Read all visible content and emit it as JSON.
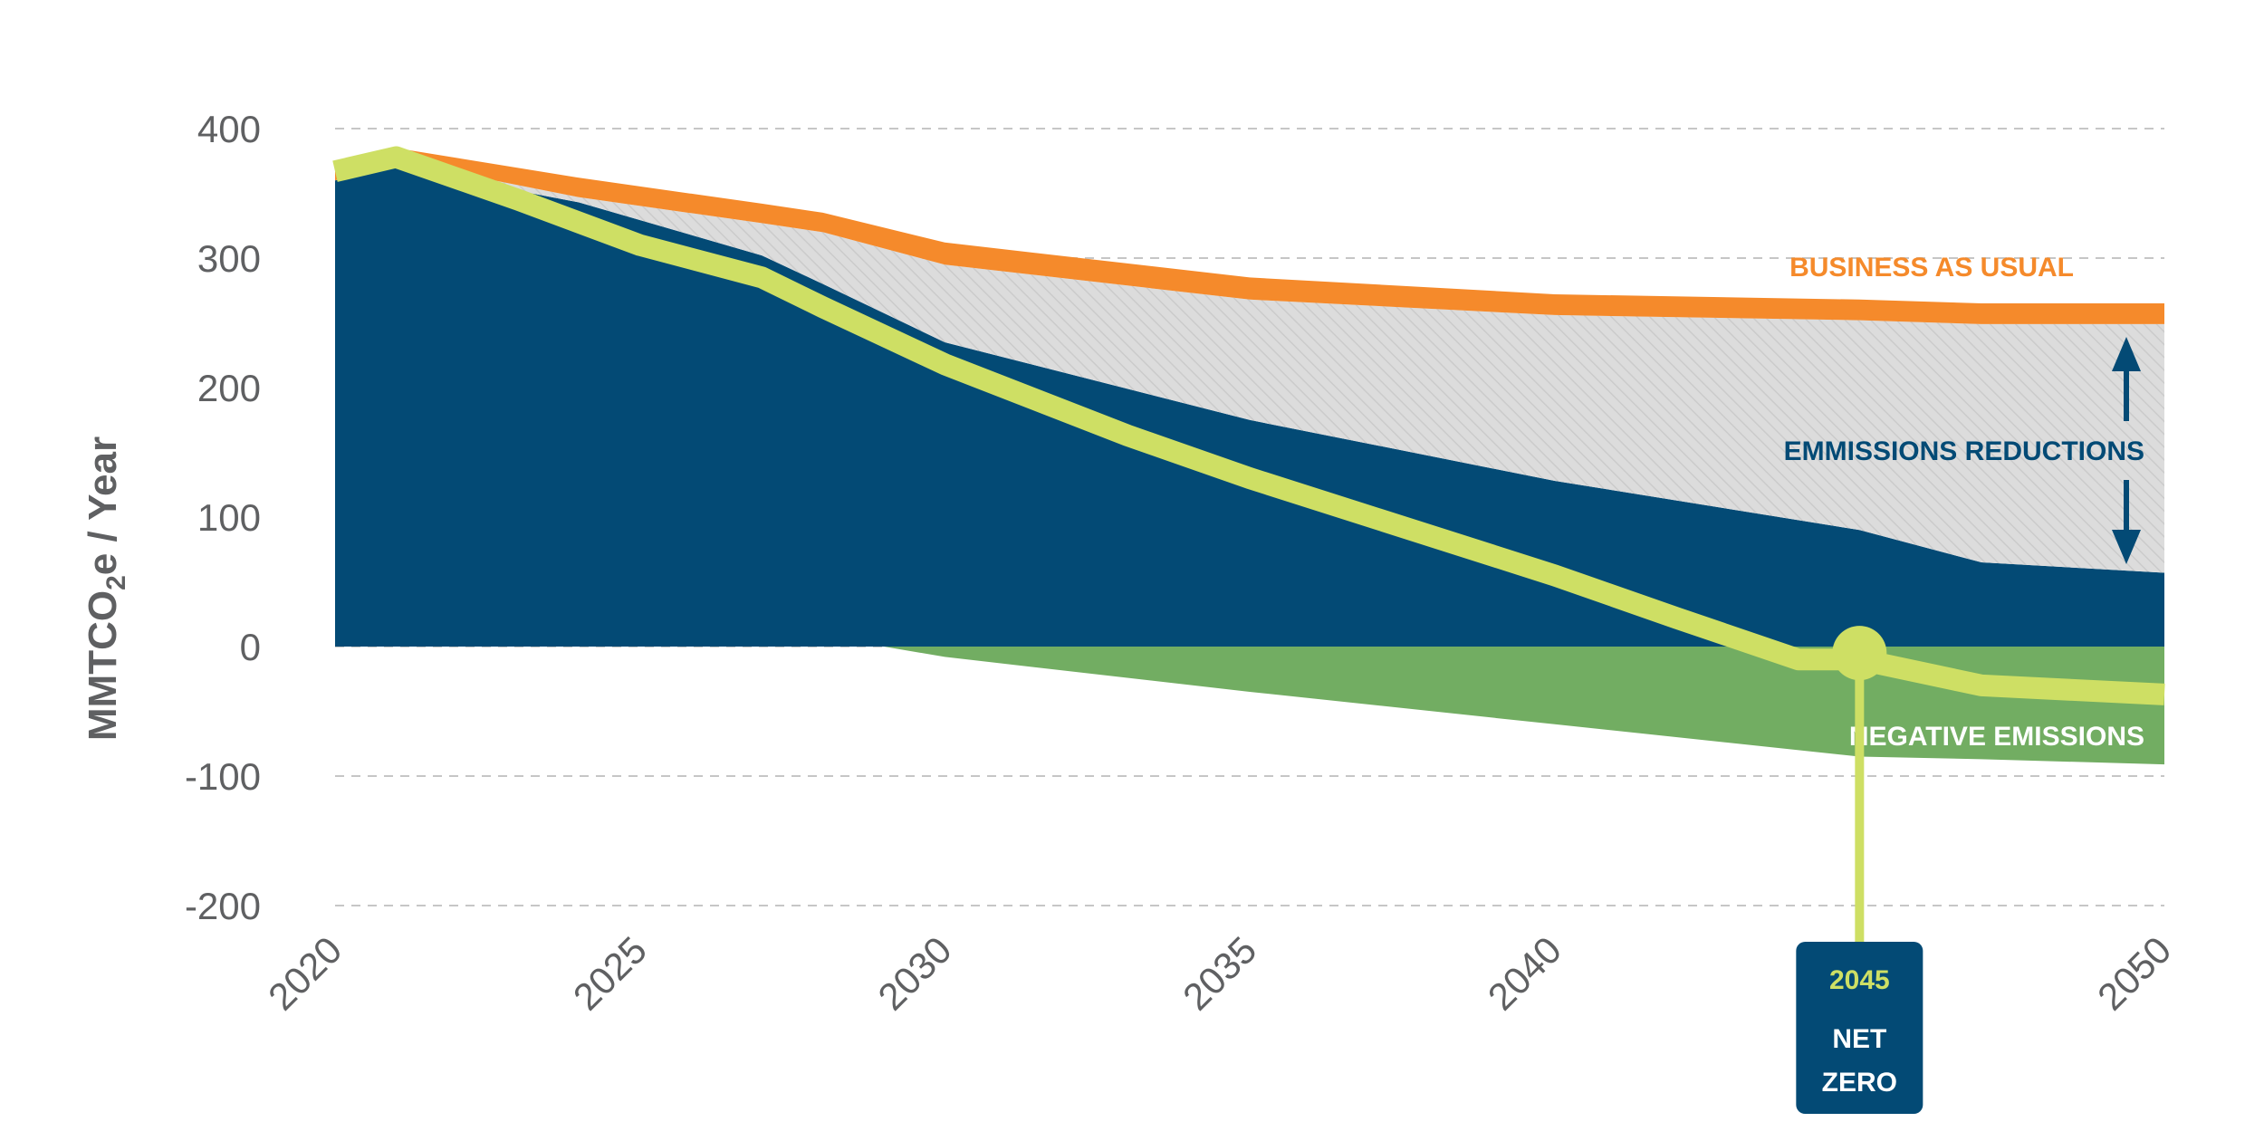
{
  "chart_data": {
    "type": "area",
    "title": "",
    "xlabel": "",
    "ylabel": "MMTCO2e / Year",
    "ylabel_parts": {
      "pre": "MMTCO",
      "sub": "2",
      "post": "e / Year"
    },
    "xlim": [
      2020,
      2050
    ],
    "ylim": [
      -200,
      400
    ],
    "x_ticks": [
      2020,
      2025,
      2030,
      2035,
      2040,
      2045,
      2050
    ],
    "x_tick_labels": [
      "2020",
      "2025",
      "2030",
      "2035",
      "2040",
      "",
      "2050"
    ],
    "y_ticks": [
      400,
      300,
      200,
      100,
      0,
      -100,
      -200
    ],
    "y_tick_labels": [
      "400",
      "300",
      "200",
      "100",
      "0",
      "-100",
      "-200"
    ],
    "grid": true,
    "colors": {
      "business_as_usual": "#f58a2b",
      "reductions_fill": "#dcdcdc",
      "reductions_hatch": "#c9c9c9",
      "emissions": "#034a75",
      "negative": "#72ad62",
      "net_line": "#cedf64",
      "grid": "#c6c6c6",
      "tick": "#5f6062"
    },
    "series": [
      {
        "name": "BUSINESS AS USUAL",
        "x": [
          2020,
          2021,
          2024,
          2027,
          2028,
          2030,
          2035,
          2040,
          2045,
          2047,
          2050
        ],
        "upper": [
          375,
          385,
          362,
          342,
          335,
          312,
          285,
          272,
          268,
          265,
          265
        ],
        "lower": [
          360,
          375,
          347,
          327,
          320,
          295,
          268,
          256,
          252,
          249,
          249
        ]
      },
      {
        "name": "EMMISSIONS REDUCTIONS",
        "x": [
          2020,
          2021,
          2024,
          2027,
          2028,
          2030,
          2035,
          2040,
          2045,
          2047,
          2050
        ],
        "upper": [
          360,
          375,
          347,
          327,
          320,
          295,
          268,
          256,
          252,
          249,
          249
        ],
        "lower": [
          360,
          370,
          343,
          302,
          280,
          235,
          175,
          128,
          90,
          65,
          57
        ]
      },
      {
        "x": [
          2020,
          2021,
          2024,
          2027,
          2028,
          2030,
          2035,
          2040,
          2045,
          2047,
          2050
        ],
        "values": [
          360,
          370,
          343,
          302,
          280,
          235,
          175,
          128,
          90,
          65,
          57
        ]
      },
      {
        "name": "NEGATIVE EMISSIONS",
        "x": [
          2020,
          2029,
          2030,
          2035,
          2040,
          2045,
          2047,
          2050
        ],
        "values": [
          0,
          0,
          -8,
          -35,
          -60,
          -85,
          -87,
          -91
        ]
      },
      {
        "x": [
          2020,
          2021,
          2023,
          2025,
          2027,
          2028,
          2030,
          2033,
          2035,
          2040,
          2042,
          2044,
          2045,
          2047,
          2050
        ],
        "values": [
          367,
          378,
          345,
          310,
          285,
          262,
          218,
          163,
          130,
          55,
          22,
          -10,
          -10,
          -30,
          -37
        ]
      }
    ],
    "annotations": {
      "bau_label": "BUSINESS AS USUAL",
      "reductions_label": "EMMISSIONS REDUCTIONS",
      "negative_label": "NEGATIVE EMISSIONS",
      "net_zero_year": "2045",
      "net_zero_line1": "NET",
      "net_zero_line2": "ZERO",
      "net_zero_point": {
        "x": 2045,
        "y": -5
      }
    }
  }
}
